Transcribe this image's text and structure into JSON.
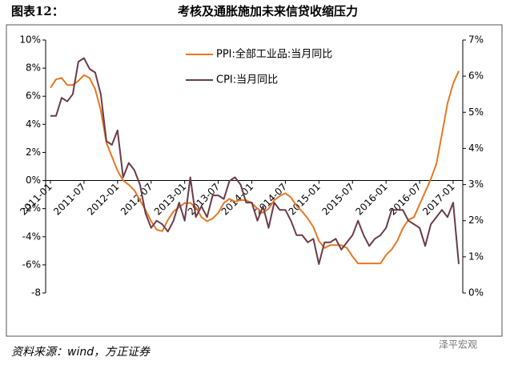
{
  "header": {
    "label": "图表12：",
    "title": "考核及通胀施加未来信贷收缩压力"
  },
  "footer": {
    "source": "资料来源：wind，方正证券",
    "watermark": "泽平宏观"
  },
  "chart_data": {
    "type": "line",
    "categories": [
      "2011-01",
      null,
      null,
      null,
      null,
      null,
      "2011-07",
      null,
      null,
      null,
      null,
      null,
      "2012-01",
      null,
      null,
      null,
      null,
      null,
      "2012-07",
      null,
      null,
      null,
      null,
      null,
      "2013-01",
      null,
      null,
      null,
      null,
      null,
      "2013-07",
      null,
      null,
      null,
      null,
      null,
      "2014-01",
      null,
      null,
      null,
      null,
      null,
      "2014-07",
      null,
      null,
      null,
      null,
      null,
      "2015-01",
      null,
      null,
      null,
      null,
      null,
      "2015-07",
      null,
      null,
      null,
      null,
      null,
      "2016-01",
      null,
      null,
      null,
      null,
      null,
      "2016-07",
      null,
      null,
      null,
      null,
      null,
      "2017-01",
      null
    ],
    "series": [
      {
        "name": "PPI:全部工业品:当月同比",
        "color": "#e87722",
        "values": [
          6.6,
          7.2,
          7.3,
          6.8,
          6.8,
          7.1,
          7.5,
          7.3,
          6.5,
          5.0,
          2.7,
          1.7,
          0.7,
          0.0,
          -0.3,
          -0.7,
          -1.4,
          -2.1,
          -2.9,
          -3.5,
          -3.6,
          -2.8,
          -2.2,
          -1.9,
          -1.6,
          -1.6,
          -1.9,
          -2.6,
          -2.9,
          -2.7,
          -2.3,
          -1.6,
          -1.3,
          -1.5,
          -1.4,
          -1.4,
          -1.6,
          -2.0,
          -2.3,
          -2.0,
          -1.4,
          -1.1,
          -0.9,
          -1.2,
          -1.8,
          -2.2,
          -2.7,
          -3.3,
          -4.3,
          -4.8,
          -4.6,
          -4.6,
          -4.6,
          -4.8,
          -5.4,
          -5.9,
          -5.9,
          -5.9,
          -5.9,
          -5.9,
          -5.3,
          -4.9,
          -4.3,
          -3.4,
          -2.8,
          -2.6,
          -1.7,
          -0.8,
          0.1,
          1.2,
          3.3,
          5.5,
          6.9,
          7.8
        ]
      },
      {
        "name": "CPI:当月同比",
        "color": "#6b3b4a",
        "axis": "y2",
        "values": [
          4.9,
          4.9,
          5.4,
          5.3,
          5.5,
          6.4,
          6.5,
          6.2,
          6.1,
          5.5,
          4.2,
          4.1,
          4.5,
          3.2,
          3.6,
          3.4,
          3.0,
          2.2,
          1.8,
          2.0,
          1.9,
          1.7,
          2.0,
          2.5,
          2.0,
          3.2,
          2.1,
          2.4,
          2.1,
          2.7,
          2.7,
          2.6,
          3.1,
          3.2,
          3.0,
          2.5,
          2.5,
          2.0,
          2.4,
          1.8,
          2.5,
          2.3,
          2.3,
          2.0,
          1.6,
          1.6,
          1.4,
          1.5,
          0.8,
          1.4,
          1.4,
          1.5,
          1.2,
          1.4,
          1.6,
          2.0,
          1.6,
          1.3,
          1.5,
          1.6,
          1.8,
          2.3,
          2.3,
          2.3,
          2.0,
          1.9,
          1.8,
          1.3,
          1.9,
          2.1,
          2.3,
          2.1,
          2.5,
          0.8
        ]
      }
    ],
    "ylim": [
      -8,
      10
    ],
    "yticks": [
      {
        "value": 10,
        "label": "10%"
      },
      {
        "value": 8,
        "label": "8%"
      },
      {
        "value": 6,
        "label": "6%"
      },
      {
        "value": 4,
        "label": "4%"
      },
      {
        "value": 2,
        "label": "2%"
      },
      {
        "value": 0,
        "label": "0%"
      },
      {
        "value": -2,
        "label": "-2%"
      },
      {
        "value": -4,
        "label": "-4%"
      },
      {
        "value": -6,
        "label": "-6%"
      },
      {
        "value": -8,
        "label": "-8"
      }
    ],
    "y2lim": [
      0,
      7
    ],
    "y2ticks": [
      {
        "value": 7,
        "label": "7%"
      },
      {
        "value": 6,
        "label": "6%"
      },
      {
        "value": 5,
        "label": "5%"
      },
      {
        "value": 4,
        "label": "4%"
      },
      {
        "value": 3,
        "label": "3%"
      },
      {
        "value": 2,
        "label": "2%"
      },
      {
        "value": 1,
        "label": "1%"
      },
      {
        "value": 0,
        "label": "0%"
      }
    ]
  }
}
